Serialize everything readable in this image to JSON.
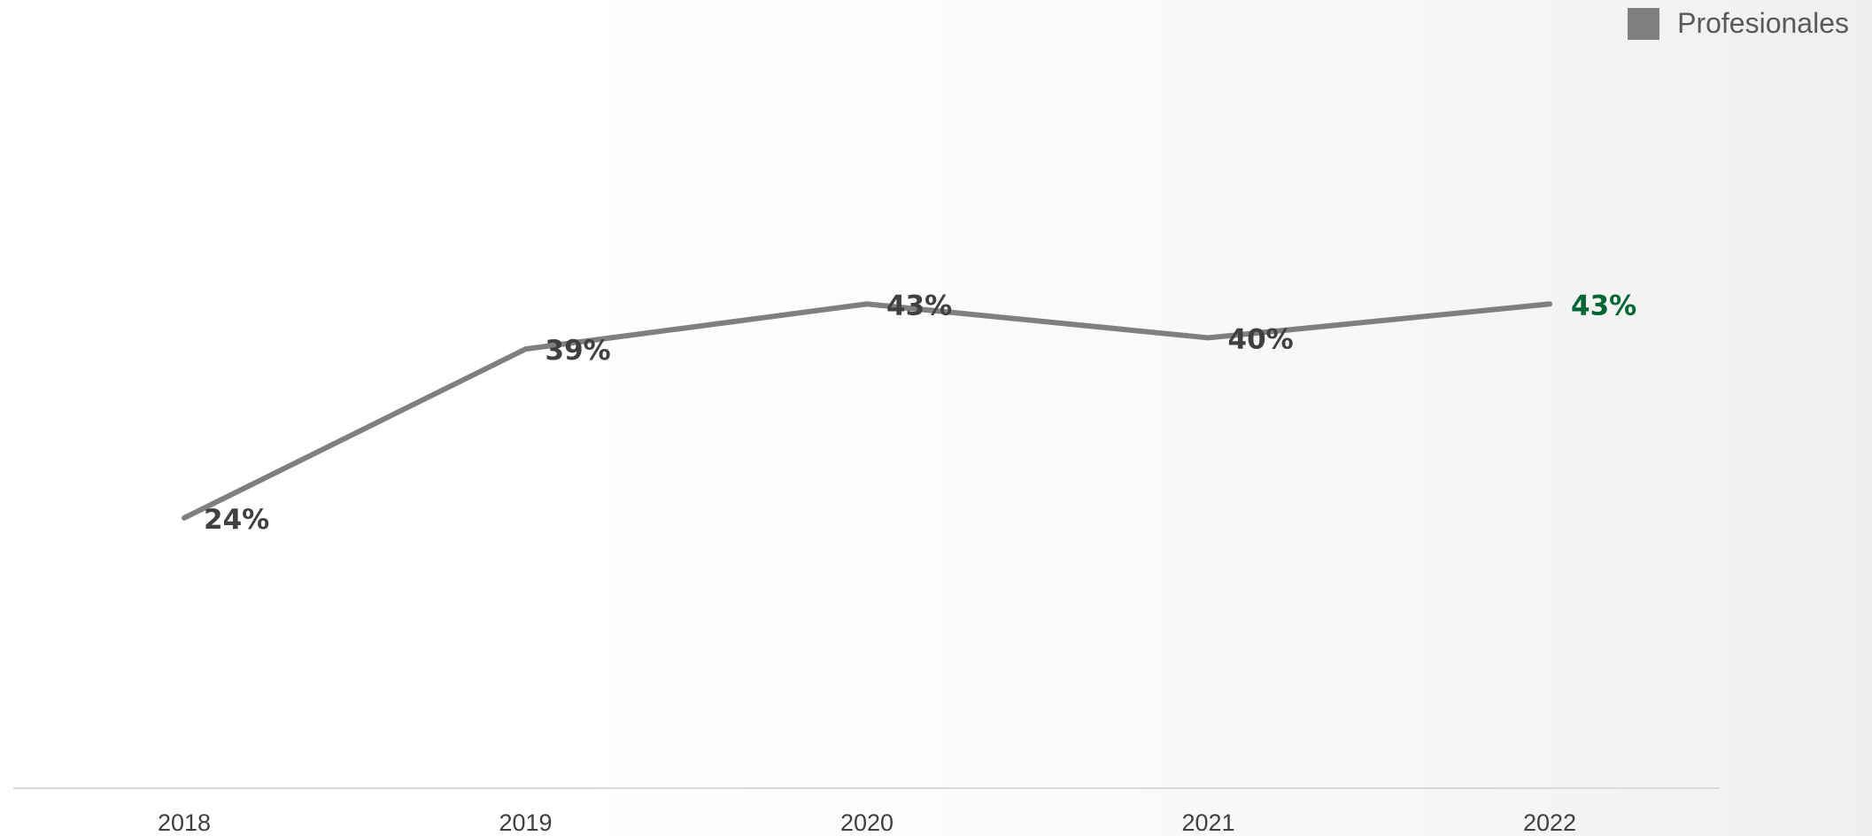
{
  "chart_data": {
    "type": "line",
    "title": "",
    "xlabel": "",
    "ylabel": "",
    "categories": [
      "2018",
      "2019",
      "2020",
      "2021",
      "2022"
    ],
    "series": [
      {
        "name": "Profesionales",
        "values": [
          24,
          39,
          43,
          40,
          43
        ],
        "value_labels": [
          "24%",
          "39%",
          "43%",
          "40%",
          "43%"
        ],
        "color": "#7f7f7f"
      }
    ],
    "ylim": [
      0,
      70
    ],
    "grid": false,
    "legend_position": "top-right",
    "label_color": "#404040",
    "highlight_label_color": "#006633",
    "highlight_index": 4
  }
}
